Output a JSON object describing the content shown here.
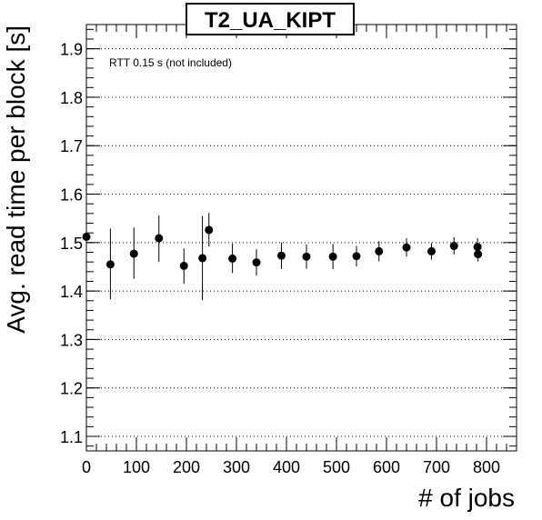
{
  "chart_data": {
    "type": "scatter",
    "title": "T2_UA_KIPT",
    "xlabel": "# of jobs",
    "ylabel": "Avg. read time per block [s]",
    "annotation": "RTT 0.15 s (not included)",
    "xlim": [
      0,
      860
    ],
    "ylim": [
      1.07,
      1.95
    ],
    "x_ticks": [
      0,
      100,
      200,
      300,
      400,
      500,
      600,
      700,
      800
    ],
    "y_ticks": [
      1.1,
      1.2,
      1.3,
      1.4,
      1.5,
      1.6,
      1.7,
      1.8,
      1.9
    ],
    "grid": "y-dotted",
    "colors": {
      "marker": "#000000",
      "grid": "#000000",
      "frame": "#000000"
    },
    "points": [
      {
        "x": 0,
        "y": 1.512,
        "yerr_low": 0.016,
        "yerr_high": 0.016
      },
      {
        "x": 48,
        "y": 1.455,
        "yerr_low": 0.072,
        "yerr_high": 0.074
      },
      {
        "x": 95,
        "y": 1.477,
        "yerr_low": 0.052,
        "yerr_high": 0.054
      },
      {
        "x": 145,
        "y": 1.509,
        "yerr_low": 0.049,
        "yerr_high": 0.047
      },
      {
        "x": 195,
        "y": 1.452,
        "yerr_low": 0.037,
        "yerr_high": 0.036
      },
      {
        "x": 232,
        "y": 1.468,
        "yerr_low": 0.087,
        "yerr_high": 0.087
      },
      {
        "x": 245,
        "y": 1.526,
        "yerr_low": 0.034,
        "yerr_high": 0.035
      },
      {
        "x": 292,
        "y": 1.467,
        "yerr_low": 0.03,
        "yerr_high": 0.031
      },
      {
        "x": 340,
        "y": 1.459,
        "yerr_low": 0.027,
        "yerr_high": 0.027
      },
      {
        "x": 390,
        "y": 1.473,
        "yerr_low": 0.027,
        "yerr_high": 0.027
      },
      {
        "x": 440,
        "y": 1.471,
        "yerr_low": 0.025,
        "yerr_high": 0.025
      },
      {
        "x": 493,
        "y": 1.471,
        "yerr_low": 0.026,
        "yerr_high": 0.026
      },
      {
        "x": 540,
        "y": 1.472,
        "yerr_low": 0.021,
        "yerr_high": 0.021
      },
      {
        "x": 585,
        "y": 1.482,
        "yerr_low": 0.021,
        "yerr_high": 0.021
      },
      {
        "x": 640,
        "y": 1.49,
        "yerr_low": 0.019,
        "yerr_high": 0.019
      },
      {
        "x": 690,
        "y": 1.482,
        "yerr_low": 0.017,
        "yerr_high": 0.017
      },
      {
        "x": 735,
        "y": 1.493,
        "yerr_low": 0.018,
        "yerr_high": 0.018
      },
      {
        "x": 782,
        "y": 1.491,
        "yerr_low": 0.018,
        "yerr_high": 0.018
      },
      {
        "x": 783,
        "y": 1.476,
        "yerr_low": 0.015,
        "yerr_high": 0.015
      }
    ]
  }
}
